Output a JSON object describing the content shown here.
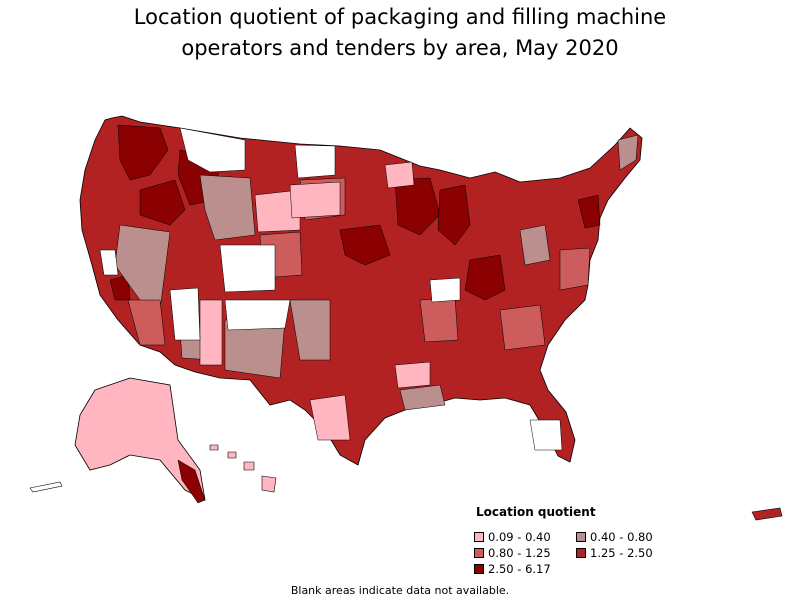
{
  "title_line1": "Location quotient of packaging and filling machine",
  "title_line2": "operators and tenders by area, May 2020",
  "legend": {
    "title": "Location quotient",
    "items": [
      {
        "label": "0.09 - 0.40",
        "color": "#ffb6c1"
      },
      {
        "label": "0.40 - 0.80",
        "color": "#bc8f8f"
      },
      {
        "label": "0.80 - 1.25",
        "color": "#cd5c5c"
      },
      {
        "label": "1.25 - 2.50",
        "color": "#b22222"
      },
      {
        "label": "2.50 - 6.17",
        "color": "#8b0000"
      }
    ]
  },
  "footnote": "Blank areas indicate data not available.",
  "colors": {
    "blank": "#ffffff",
    "border": "#000000"
  }
}
